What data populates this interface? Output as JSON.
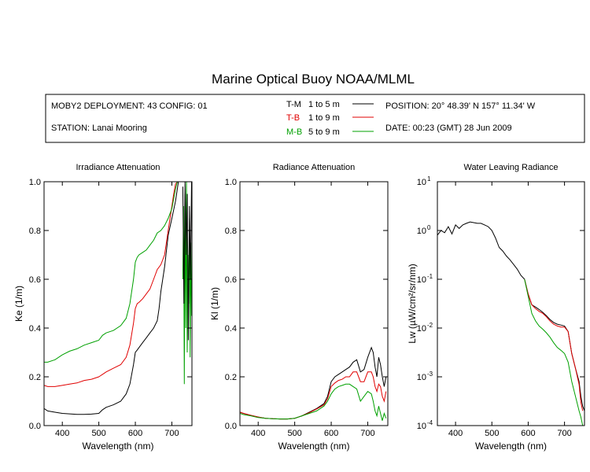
{
  "title": "Marine Optical Buoy NOAA/MLML",
  "info": {
    "deployment": "MOBY2 DEPLOYMENT: 43 CONFIG: 01",
    "station": "STATION: Lanai Mooring",
    "position": "POSITION: 20° 48.39' N   157° 11.34' W",
    "date": "DATE: 00:23 (GMT) 28 Jun 2009",
    "legend": [
      {
        "code": "T-M",
        "range": "1 to 5  m",
        "color": "#000000"
      },
      {
        "code": "T-B",
        "range": "1 to 9  m",
        "color": "#e00000"
      },
      {
        "code": "M-B",
        "range": "5 to 9  m",
        "color": "#00a000"
      }
    ]
  },
  "chart_data": [
    {
      "type": "line",
      "title": "Irradiance Attenuation",
      "xlabel": "Wavelength (nm)",
      "ylabel": "Ke  (1/m)",
      "xlim": [
        350,
        755
      ],
      "ylim": [
        0,
        1
      ],
      "xticks": [
        400,
        500,
        600,
        700
      ],
      "yticks": [
        "0.0",
        "0.2",
        "0.4",
        "0.6",
        "0.8",
        "1.0"
      ],
      "series": [
        {
          "name": "T-M",
          "color": "#000000",
          "x": [
            350,
            360,
            380,
            400,
            420,
            440,
            460,
            480,
            500,
            510,
            520,
            540,
            560,
            575,
            585,
            595,
            600,
            605,
            610,
            620,
            630,
            640,
            650,
            660,
            665,
            670,
            680,
            690,
            700,
            710,
            715,
            718,
            720
          ],
          "y": [
            0.07,
            0.06,
            0.055,
            0.05,
            0.048,
            0.046,
            0.046,
            0.047,
            0.05,
            0.065,
            0.075,
            0.085,
            0.1,
            0.13,
            0.17,
            0.25,
            0.3,
            0.31,
            0.32,
            0.34,
            0.36,
            0.38,
            0.4,
            0.43,
            0.48,
            0.55,
            0.65,
            0.78,
            0.85,
            0.92,
            0.97,
            1.0,
            1.0
          ]
        },
        {
          "name": "T-B",
          "color": "#e00000",
          "x": [
            350,
            360,
            380,
            400,
            420,
            440,
            460,
            480,
            500,
            510,
            520,
            540,
            560,
            575,
            585,
            595,
            600,
            605,
            610,
            620,
            630,
            640,
            650,
            660,
            670,
            680,
            690,
            700,
            705,
            710,
            715
          ],
          "y": [
            0.165,
            0.16,
            0.16,
            0.165,
            0.17,
            0.175,
            0.185,
            0.19,
            0.2,
            0.21,
            0.22,
            0.235,
            0.25,
            0.28,
            0.33,
            0.42,
            0.48,
            0.5,
            0.505,
            0.52,
            0.54,
            0.56,
            0.6,
            0.64,
            0.66,
            0.7,
            0.8,
            0.9,
            0.95,
            0.99,
            1.0
          ]
        },
        {
          "name": "M-B",
          "color": "#00a000",
          "x": [
            350,
            360,
            380,
            400,
            420,
            440,
            460,
            480,
            500,
            510,
            520,
            540,
            560,
            575,
            585,
            595,
            600,
            605,
            610,
            620,
            630,
            640,
            650,
            660,
            670,
            680,
            690,
            700,
            705,
            710,
            715
          ],
          "y": [
            0.26,
            0.26,
            0.27,
            0.29,
            0.305,
            0.315,
            0.33,
            0.34,
            0.35,
            0.37,
            0.38,
            0.39,
            0.41,
            0.44,
            0.5,
            0.6,
            0.67,
            0.69,
            0.7,
            0.71,
            0.72,
            0.74,
            0.76,
            0.79,
            0.8,
            0.82,
            0.85,
            0.89,
            0.93,
            0.97,
            1.0
          ]
        },
        {
          "name": "M-B noise",
          "color": "#00a000",
          "x": [
            730,
            732,
            734,
            736,
            738,
            740,
            742,
            744,
            746,
            748,
            750,
            752,
            754
          ],
          "y": [
            0.6,
            0.9,
            0.17,
            0.95,
            0.4,
            1.0,
            0.3,
            0.7,
            0.5,
            0.85,
            0.28,
            0.75,
            0.45
          ]
        },
        {
          "name": "T-M noise",
          "color": "#000000",
          "x": [
            730,
            733,
            736,
            739,
            742,
            745,
            748,
            751,
            754
          ],
          "y": [
            0.98,
            0.5,
            1.0,
            0.7,
            0.95,
            0.35,
            0.9,
            0.6,
            1.0
          ]
        }
      ]
    },
    {
      "type": "line",
      "title": "Radiance Attenuation",
      "xlabel": "Wavelength (nm)",
      "ylabel": "Kl  (1/m)",
      "xlim": [
        350,
        755
      ],
      "ylim": [
        0,
        1
      ],
      "xticks": [
        400,
        500,
        600,
        700
      ],
      "yticks": [
        "0.0",
        "0.2",
        "0.4",
        "0.6",
        "0.8",
        "1.0"
      ],
      "series": [
        {
          "name": "T-M",
          "color": "#000000",
          "x": [
            350,
            360,
            380,
            400,
            420,
            440,
            460,
            480,
            500,
            520,
            540,
            560,
            580,
            590,
            600,
            610,
            620,
            630,
            640,
            650,
            660,
            670,
            680,
            690,
            700,
            710,
            715,
            720,
            725,
            730,
            735,
            740,
            745,
            750
          ],
          "y": [
            0.055,
            0.05,
            0.042,
            0.035,
            0.03,
            0.028,
            0.027,
            0.027,
            0.03,
            0.04,
            0.055,
            0.07,
            0.09,
            0.12,
            0.18,
            0.2,
            0.21,
            0.22,
            0.23,
            0.24,
            0.26,
            0.27,
            0.22,
            0.23,
            0.28,
            0.32,
            0.3,
            0.24,
            0.2,
            0.28,
            0.25,
            0.2,
            0.16,
            0.2
          ]
        },
        {
          "name": "T-B",
          "color": "#e00000",
          "x": [
            350,
            360,
            380,
            400,
            420,
            440,
            460,
            480,
            500,
            520,
            540,
            560,
            580,
            590,
            600,
            610,
            620,
            630,
            640,
            650,
            660,
            670,
            680,
            690,
            700,
            710,
            715,
            720,
            725,
            730,
            735,
            740,
            745,
            750
          ],
          "y": [
            0.055,
            0.05,
            0.042,
            0.035,
            0.03,
            0.028,
            0.027,
            0.027,
            0.03,
            0.04,
            0.053,
            0.068,
            0.085,
            0.11,
            0.16,
            0.175,
            0.185,
            0.19,
            0.2,
            0.2,
            0.22,
            0.22,
            0.18,
            0.18,
            0.22,
            0.22,
            0.2,
            0.16,
            0.14,
            0.17,
            0.16,
            0.12,
            0.1,
            0.14
          ]
        },
        {
          "name": "M-B",
          "color": "#00a000",
          "x": [
            350,
            360,
            380,
            400,
            420,
            440,
            460,
            480,
            500,
            520,
            540,
            560,
            580,
            590,
            600,
            610,
            620,
            630,
            640,
            650,
            660,
            670,
            680,
            690,
            700,
            710,
            715,
            720,
            725,
            730,
            735,
            740,
            745,
            750
          ],
          "y": [
            0.05,
            0.045,
            0.04,
            0.033,
            0.03,
            0.028,
            0.027,
            0.027,
            0.03,
            0.04,
            0.05,
            0.06,
            0.08,
            0.1,
            0.13,
            0.15,
            0.16,
            0.165,
            0.17,
            0.17,
            0.16,
            0.15,
            0.1,
            0.12,
            0.14,
            0.13,
            0.1,
            0.06,
            0.04,
            0.08,
            0.05,
            0.02,
            0.05,
            0.03
          ]
        }
      ]
    },
    {
      "type": "line",
      "title": "Water Leaving Radiance",
      "xlabel": "Wavelength (nm)",
      "ylabel": "Lw  (µW/cm²/sr/nm)",
      "xlim": [
        350,
        755
      ],
      "ylim": [
        0.0001,
        10
      ],
      "yscale": "log",
      "xticks": [
        400,
        500,
        600,
        700
      ],
      "yticks": [
        {
          "base": "10",
          "exp": "1"
        },
        {
          "base": "10",
          "exp": "0"
        },
        {
          "base": "10",
          "exp": "-1"
        },
        {
          "base": "10",
          "exp": "-2"
        },
        {
          "base": "10",
          "exp": "-3"
        },
        {
          "base": "10",
          "exp": "-4"
        }
      ],
      "series": [
        {
          "name": "T-M",
          "color": "#000000",
          "x": [
            350,
            360,
            370,
            380,
            390,
            400,
            410,
            420,
            430,
            440,
            450,
            460,
            470,
            480,
            490,
            500,
            510,
            520,
            530,
            540,
            550,
            560,
            570,
            580,
            590,
            600,
            610,
            620,
            630,
            640,
            650,
            660,
            670,
            680,
            690,
            700,
            710,
            720,
            730,
            740,
            745,
            750,
            755
          ],
          "y": [
            0.8,
            1.0,
            0.9,
            1.2,
            0.85,
            1.3,
            1.1,
            1.3,
            1.4,
            1.5,
            1.45,
            1.4,
            1.4,
            1.3,
            1.2,
            1.0,
            0.7,
            0.45,
            0.38,
            0.3,
            0.25,
            0.2,
            0.16,
            0.12,
            0.1,
            0.05,
            0.03,
            0.027,
            0.024,
            0.021,
            0.018,
            0.015,
            0.013,
            0.012,
            0.0115,
            0.011,
            0.0085,
            0.003,
            0.0015,
            0.0008,
            0.0004,
            0.00025,
            0.0002
          ]
        },
        {
          "name": "T-B",
          "color": "#e00000",
          "x": [
            590,
            600,
            610,
            620,
            630,
            640,
            650,
            660,
            670,
            680,
            690,
            700,
            710,
            720,
            730,
            740,
            745,
            750
          ],
          "y": [
            0.1,
            0.05,
            0.03,
            0.025,
            0.022,
            0.02,
            0.017,
            0.014,
            0.012,
            0.011,
            0.0105,
            0.0105,
            0.0085,
            0.003,
            0.0015,
            0.0007,
            0.0003,
            0.0002
          ]
        },
        {
          "name": "M-B",
          "color": "#00a000",
          "x": [
            590,
            600,
            610,
            620,
            630,
            640,
            650,
            660,
            670,
            680,
            690,
            700,
            710,
            720,
            730,
            740,
            745,
            750
          ],
          "y": [
            0.1,
            0.045,
            0.02,
            0.014,
            0.011,
            0.0095,
            0.008,
            0.0065,
            0.005,
            0.004,
            0.0035,
            0.003,
            0.002,
            0.0008,
            0.0004,
            0.0002,
            0.00015,
            0.0001
          ]
        }
      ]
    }
  ]
}
